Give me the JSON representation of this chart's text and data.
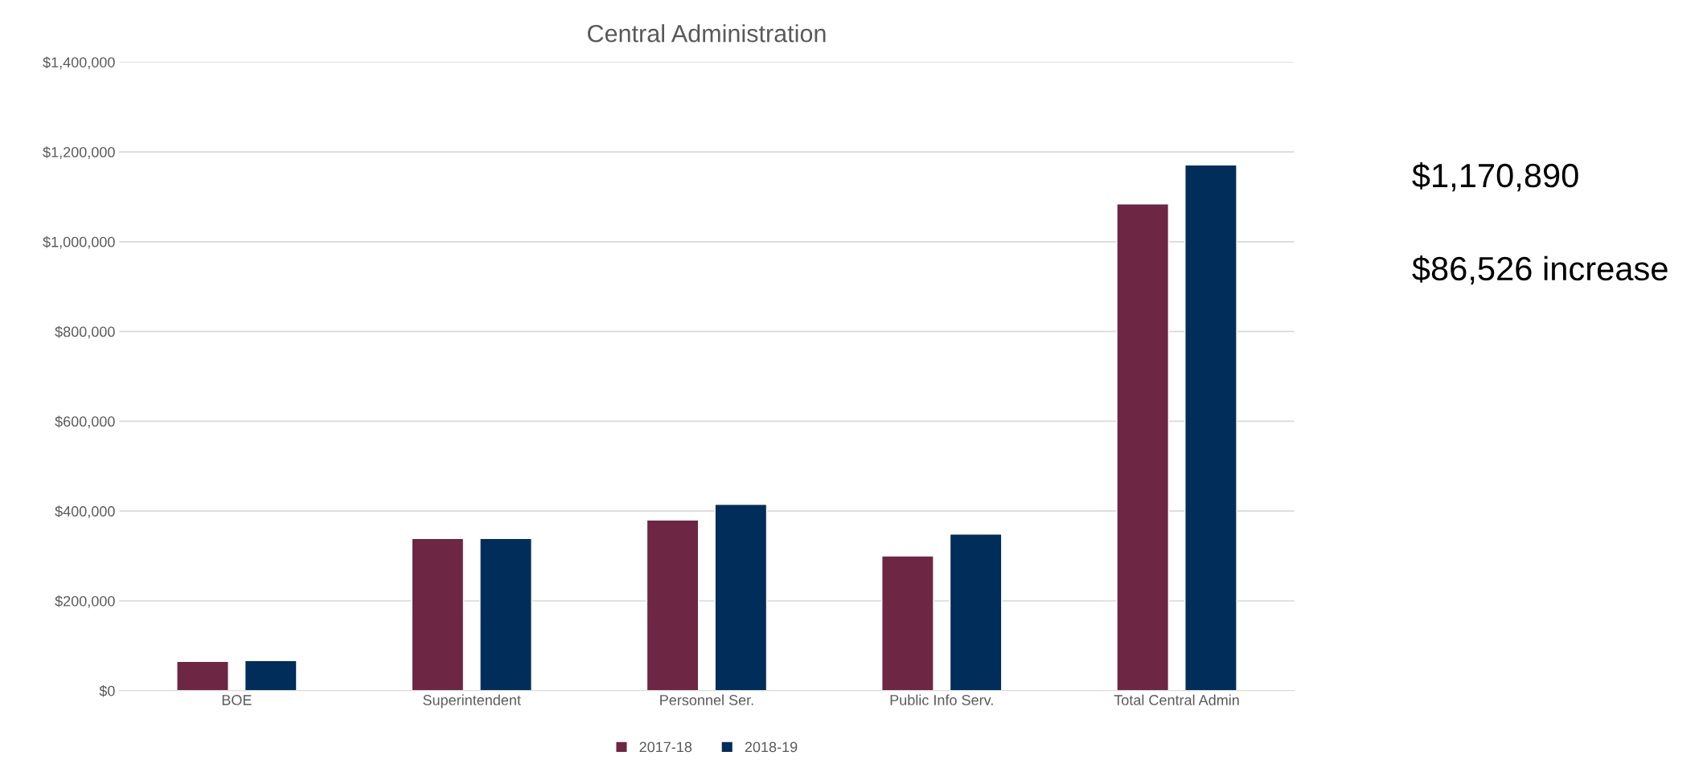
{
  "chart_data": {
    "type": "bar",
    "title": "Central Administration",
    "categories": [
      "BOE",
      "Superintendent",
      "Personnel Ser.",
      "Public Info Serv.",
      "Total Central Admin"
    ],
    "series": [
      {
        "name": "2017-18",
        "color": "#6d2643",
        "values": [
          65000,
          339000,
          380000,
          300000,
          1084000
        ]
      },
      {
        "name": "2018-19",
        "color": "#002d5a",
        "values": [
          67000,
          339000,
          415000,
          349000,
          1171000
        ]
      }
    ],
    "ylim": [
      0,
      1400000
    ],
    "yticks": [
      {
        "value": 0,
        "label": "$0"
      },
      {
        "value": 200000,
        "label": "$200,000"
      },
      {
        "value": 400000,
        "label": "$400,000"
      },
      {
        "value": 600000,
        "label": "$600,000"
      },
      {
        "value": 800000,
        "label": "$800,000"
      },
      {
        "value": 1000000,
        "label": "$1,000,000"
      },
      {
        "value": 1200000,
        "label": "$1,200,000"
      },
      {
        "value": 1400000,
        "label": "$1,400,000"
      }
    ],
    "grid": "y",
    "legend": "bottom",
    "annotations": [
      "$1,170,890",
      "$86,526 increase"
    ]
  }
}
